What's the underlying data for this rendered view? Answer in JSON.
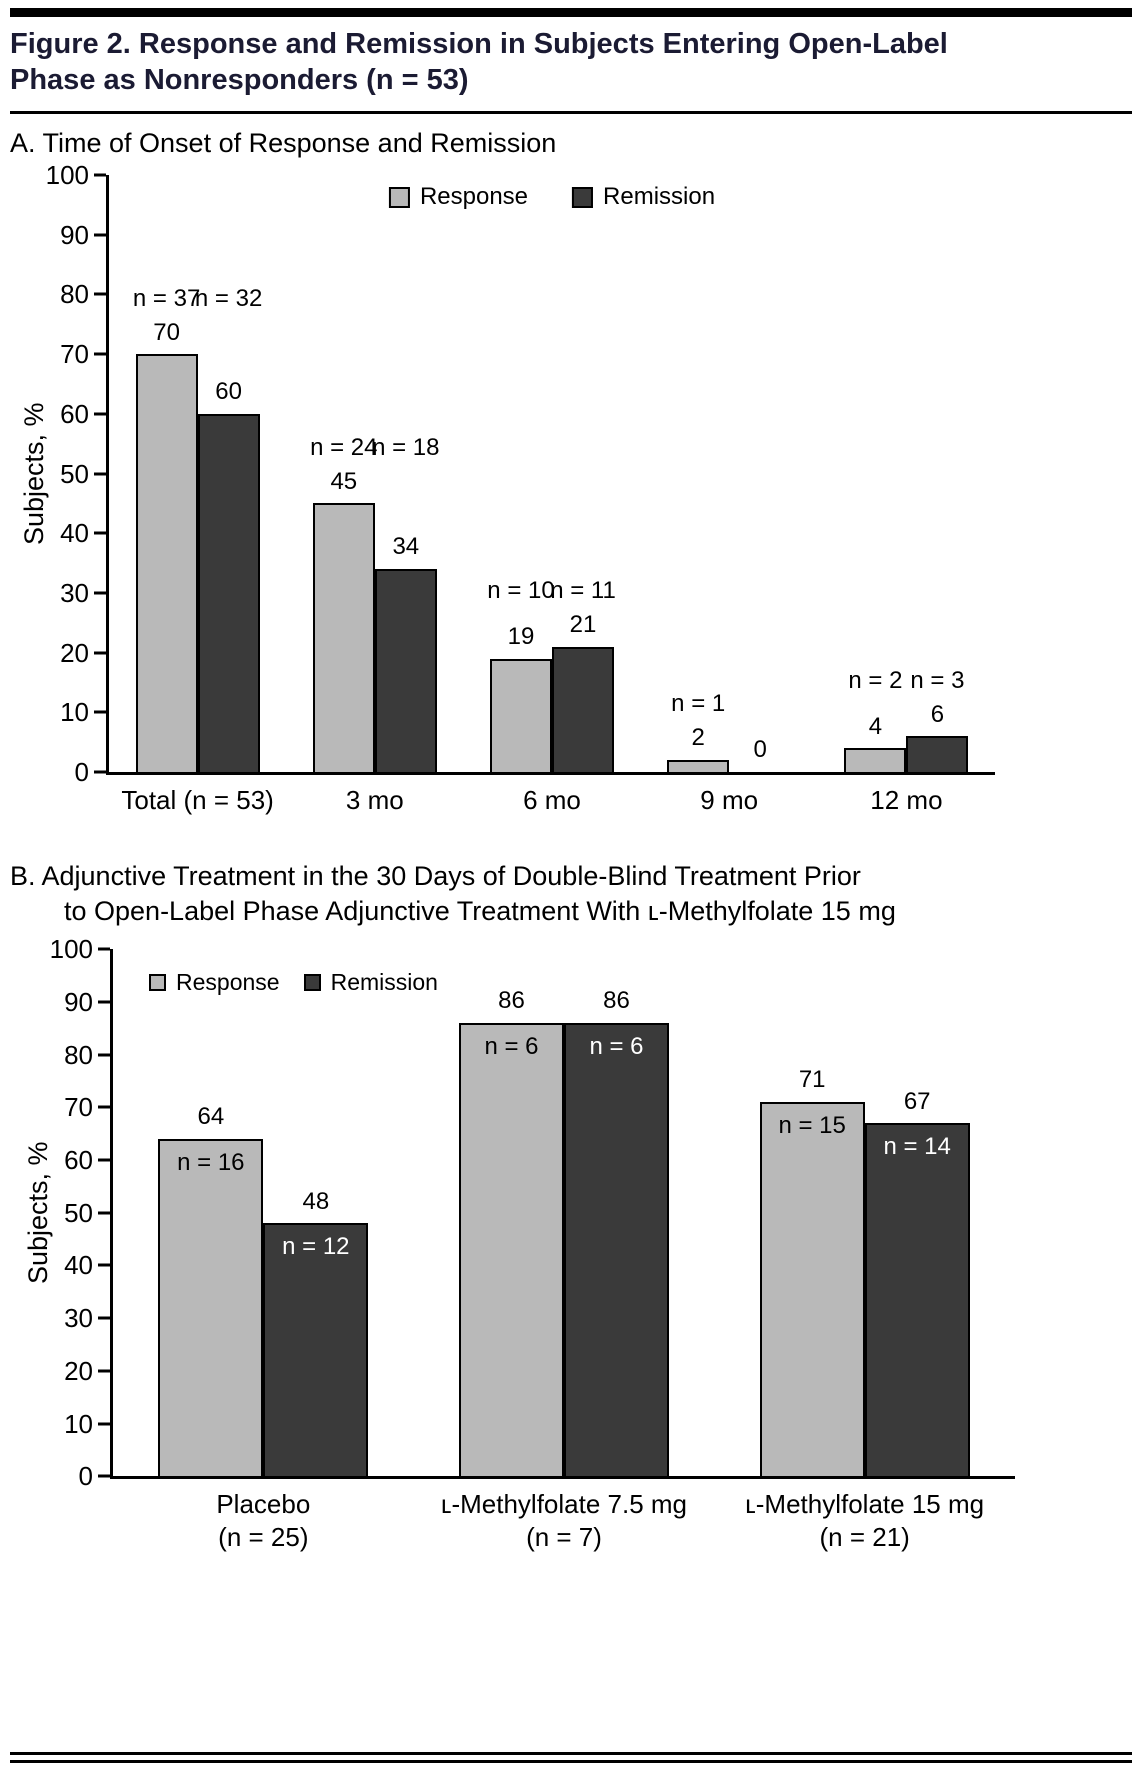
{
  "figure": {
    "title_lines": [
      "Figure 2. Response and Remission in Subjects Entering Open-Label",
      "Phase as Nonresponders (n = 53)"
    ]
  },
  "sections": {
    "a_heading": "A. Time of Onset of Response and Remission",
    "b_heading_lines": [
      "B. Adjunctive Treatment in the 30 Days of Double-Blind Treatment Prior",
      "to Open-Label Phase Adjunctive Treatment With ʟ-Methylfolate 15 mg"
    ]
  },
  "colors": {
    "response": "#b9b9b9",
    "remission": "#3a3a3a",
    "axis": "#000000"
  },
  "chart_data": [
    {
      "type": "bar",
      "panel": "A",
      "title": "A. Time of Onset of Response and Remission",
      "ylabel": "Subjects, %",
      "ylim": [
        0,
        100
      ],
      "yticks": [
        0,
        10,
        20,
        30,
        40,
        50,
        60,
        70,
        80,
        90,
        100
      ],
      "grid": false,
      "legend_position": "top-center",
      "n_label_position": "above",
      "categories": [
        "Total (n = 53)",
        "3 mo",
        "6 mo",
        "9 mo",
        "12 mo"
      ],
      "series": [
        {
          "name": "Response",
          "values": [
            70,
            45,
            19,
            2,
            4
          ],
          "n_labels": [
            "n = 37",
            "n = 24",
            "n = 10",
            "n = 1",
            "n = 2"
          ]
        },
        {
          "name": "Remission",
          "values": [
            60,
            34,
            21,
            0,
            6
          ],
          "n_labels": [
            "n = 32",
            "n = 18",
            "n = 11",
            "",
            "n = 3"
          ]
        }
      ]
    },
    {
      "type": "bar",
      "panel": "B",
      "title": "B. Adjunctive Treatment in the 30 Days of Double-Blind Treatment Prior to Open-Label Phase Adjunctive Treatment With ʟ-Methylfolate 15 mg",
      "ylabel": "Subjects, %",
      "ylim": [
        0,
        100
      ],
      "yticks": [
        0,
        10,
        20,
        30,
        40,
        50,
        60,
        70,
        80,
        90,
        100
      ],
      "grid": false,
      "legend_position": "top-left",
      "n_label_position": "inside",
      "categories": [
        [
          "Placebo",
          "(n = 25)"
        ],
        [
          "ʟ-Methylfolate 7.5 mg",
          "(n = 7)"
        ],
        [
          "ʟ-Methylfolate 15 mg",
          "(n = 21)"
        ]
      ],
      "series": [
        {
          "name": "Response",
          "values": [
            64,
            86,
            71
          ],
          "n_labels": [
            "n = 16",
            "n = 6",
            "n = 15"
          ]
        },
        {
          "name": "Remission",
          "values": [
            48,
            86,
            67
          ],
          "n_labels": [
            "n = 12",
            "n = 6",
            "n = 14"
          ]
        }
      ]
    }
  ]
}
